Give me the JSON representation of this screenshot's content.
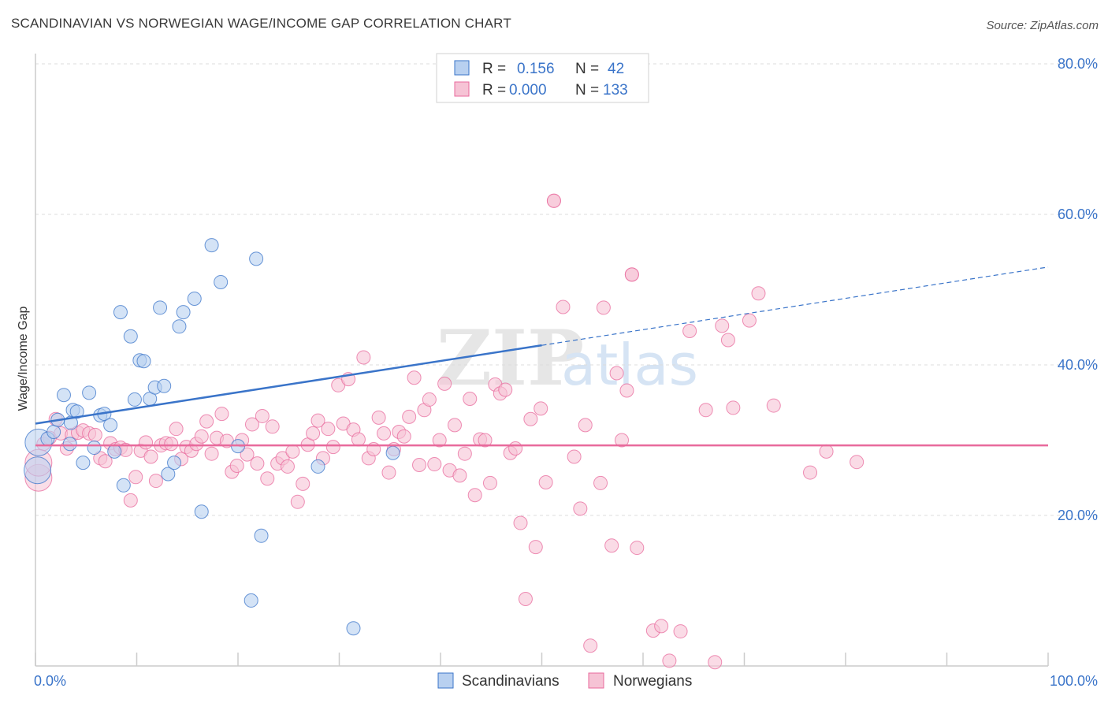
{
  "title": "SCANDINAVIAN VS NORWEGIAN WAGE/INCOME GAP CORRELATION CHART",
  "source": "Source: ZipAtlas.com",
  "watermark": {
    "zip": "ZIP",
    "atlas": "atlas"
  },
  "colors": {
    "blue": "#3a74c9",
    "blue_fill": "#b8d0f0",
    "pink": "#e86a9c",
    "pink_fill": "#f6c3d5",
    "grid": "#dcdcdc"
  },
  "legend": {
    "rows": [
      {
        "r_label": "R =",
        "r_value": "0.156",
        "n_label": "N =",
        "n_value": "42"
      },
      {
        "r_label": "R =",
        "r_value": "0.000",
        "n_label": "N =",
        "n_value": "133"
      }
    ]
  },
  "bottom_legend": [
    "Scandinavians",
    "Norwegians"
  ],
  "chart_data": {
    "type": "scatter",
    "title": "SCANDINAVIAN VS NORWEGIAN WAGE/INCOME GAP CORRELATION CHART",
    "xlabel": "",
    "ylabel": "Wage/Income Gap",
    "xlim": [
      0,
      100
    ],
    "ylim": [
      0,
      80
    ],
    "x_tick_labels": [
      "0.0%",
      "100.0%"
    ],
    "y_ticks": [
      20,
      40,
      60,
      80
    ],
    "y_tick_labels": [
      "20.0%",
      "40.0%",
      "60.0%",
      "80.0%"
    ],
    "series": [
      {
        "name": "Scandinavians",
        "color": "#3a74c9",
        "trend": {
          "x0": 0,
          "y0": 32.2,
          "x1": 50,
          "y1": 42.6,
          "dash_x1": 100,
          "dash_y1": 53.0
        },
        "points": [
          [
            0.3,
            29.7
          ],
          [
            1.2,
            30.2
          ],
          [
            1.8,
            31.1
          ],
          [
            2.2,
            32.7
          ],
          [
            2.8,
            36.0
          ],
          [
            3.4,
            29.5
          ],
          [
            3.5,
            32.3
          ],
          [
            3.7,
            34.0
          ],
          [
            4.1,
            33.8
          ],
          [
            4.7,
            27.0
          ],
          [
            5.3,
            36.3
          ],
          [
            5.8,
            29.0
          ],
          [
            6.4,
            33.3
          ],
          [
            6.8,
            33.5
          ],
          [
            7.4,
            32.0
          ],
          [
            7.8,
            28.5
          ],
          [
            8.4,
            47.0
          ],
          [
            8.7,
            24.0
          ],
          [
            9.4,
            43.8
          ],
          [
            9.8,
            35.4
          ],
          [
            10.3,
            40.6
          ],
          [
            10.7,
            40.5
          ],
          [
            11.3,
            35.5
          ],
          [
            11.8,
            37.0
          ],
          [
            12.3,
            47.6
          ],
          [
            12.7,
            37.2
          ],
          [
            13.1,
            25.5
          ],
          [
            13.7,
            27.0
          ],
          [
            14.2,
            45.1
          ],
          [
            14.6,
            47.0
          ],
          [
            15.7,
            48.8
          ],
          [
            16.4,
            20.5
          ],
          [
            17.4,
            55.9
          ],
          [
            18.3,
            51.0
          ],
          [
            20.0,
            29.2
          ],
          [
            21.3,
            8.7
          ],
          [
            21.8,
            54.1
          ],
          [
            22.3,
            17.3
          ],
          [
            27.9,
            26.5
          ],
          [
            31.4,
            5.0
          ],
          [
            35.3,
            28.3
          ],
          [
            0.2,
            26.0
          ]
        ]
      },
      {
        "name": "Norwegians",
        "color": "#e86a9c",
        "trend": {
          "x0": 0,
          "y0": 29.3,
          "x1": 100,
          "y1": 29.3
        },
        "points": [
          [
            0.3,
            25.0
          ],
          [
            0.8,
            29.5
          ],
          [
            1.4,
            30.3
          ],
          [
            2.0,
            32.8
          ],
          [
            2.5,
            30.9
          ],
          [
            3.1,
            28.9
          ],
          [
            3.6,
            30.7
          ],
          [
            4.2,
            31.0
          ],
          [
            4.7,
            31.3
          ],
          [
            5.3,
            30.9
          ],
          [
            5.9,
            30.7
          ],
          [
            6.4,
            27.6
          ],
          [
            6.9,
            27.2
          ],
          [
            7.4,
            29.6
          ],
          [
            7.9,
            28.8
          ],
          [
            8.4,
            29.0
          ],
          [
            8.9,
            28.7
          ],
          [
            9.4,
            22.0
          ],
          [
            9.9,
            25.1
          ],
          [
            10.4,
            28.6
          ],
          [
            10.9,
            29.7
          ],
          [
            11.4,
            27.8
          ],
          [
            11.9,
            24.6
          ],
          [
            12.4,
            29.3
          ],
          [
            12.9,
            29.6
          ],
          [
            13.4,
            29.5
          ],
          [
            13.9,
            31.5
          ],
          [
            14.4,
            27.5
          ],
          [
            14.9,
            29.1
          ],
          [
            15.4,
            28.6
          ],
          [
            15.9,
            29.5
          ],
          [
            16.4,
            30.5
          ],
          [
            16.9,
            32.5
          ],
          [
            17.4,
            28.2
          ],
          [
            17.9,
            30.3
          ],
          [
            18.4,
            33.5
          ],
          [
            18.9,
            29.9
          ],
          [
            19.4,
            25.8
          ],
          [
            19.9,
            26.6
          ],
          [
            20.4,
            30.0
          ],
          [
            20.9,
            28.1
          ],
          [
            21.4,
            32.1
          ],
          [
            21.9,
            26.9
          ],
          [
            22.4,
            33.2
          ],
          [
            22.9,
            24.9
          ],
          [
            23.4,
            31.8
          ],
          [
            23.9,
            26.9
          ],
          [
            24.4,
            27.6
          ],
          [
            24.9,
            26.5
          ],
          [
            25.4,
            28.5
          ],
          [
            25.9,
            21.8
          ],
          [
            26.4,
            24.2
          ],
          [
            26.9,
            29.4
          ],
          [
            27.4,
            30.9
          ],
          [
            27.9,
            32.6
          ],
          [
            28.4,
            27.6
          ],
          [
            28.9,
            31.5
          ],
          [
            29.4,
            29.1
          ],
          [
            29.9,
            37.3
          ],
          [
            30.4,
            32.2
          ],
          [
            30.9,
            38.1
          ],
          [
            31.4,
            31.4
          ],
          [
            31.9,
            30.1
          ],
          [
            32.4,
            41.0
          ],
          [
            32.9,
            27.6
          ],
          [
            33.4,
            28.8
          ],
          [
            33.9,
            33.0
          ],
          [
            34.4,
            30.9
          ],
          [
            34.9,
            25.7
          ],
          [
            35.4,
            28.8
          ],
          [
            35.9,
            31.1
          ],
          [
            36.4,
            30.5
          ],
          [
            36.9,
            33.1
          ],
          [
            37.4,
            38.3
          ],
          [
            37.9,
            26.7
          ],
          [
            38.4,
            34.0
          ],
          [
            38.9,
            35.4
          ],
          [
            39.4,
            26.8
          ],
          [
            39.9,
            30.0
          ],
          [
            40.4,
            37.5
          ],
          [
            40.9,
            26.0
          ],
          [
            41.4,
            32.0
          ],
          [
            41.9,
            25.3
          ],
          [
            42.4,
            28.2
          ],
          [
            42.9,
            35.5
          ],
          [
            43.4,
            22.7
          ],
          [
            43.9,
            30.1
          ],
          [
            44.4,
            30.0
          ],
          [
            44.9,
            24.3
          ],
          [
            45.4,
            37.4
          ],
          [
            45.9,
            36.2
          ],
          [
            46.4,
            36.7
          ],
          [
            46.9,
            28.3
          ],
          [
            47.4,
            28.9
          ],
          [
            47.9,
            19.0
          ],
          [
            48.4,
            8.9
          ],
          [
            48.9,
            32.8
          ],
          [
            49.4,
            15.8
          ],
          [
            49.9,
            34.2
          ],
          [
            50.4,
            24.4
          ],
          [
            51.2,
            61.8
          ],
          [
            52.1,
            47.7
          ],
          [
            53.2,
            27.8
          ],
          [
            53.8,
            20.9
          ],
          [
            54.3,
            32.0
          ],
          [
            55.8,
            24.3
          ],
          [
            56.1,
            47.6
          ],
          [
            56.9,
            16.0
          ],
          [
            57.4,
            38.9
          ],
          [
            57.9,
            30.0
          ],
          [
            58.4,
            36.6
          ],
          [
            58.9,
            52.0
          ],
          [
            59.4,
            15.7
          ],
          [
            61.0,
            4.7
          ],
          [
            61.8,
            5.3
          ],
          [
            62.6,
            0.7
          ],
          [
            63.7,
            4.6
          ],
          [
            64.6,
            44.5
          ],
          [
            66.2,
            34.0
          ],
          [
            67.1,
            0.5
          ],
          [
            67.8,
            45.2
          ],
          [
            68.4,
            43.3
          ],
          [
            68.9,
            34.3
          ],
          [
            70.5,
            45.9
          ],
          [
            71.4,
            49.5
          ],
          [
            72.9,
            34.6
          ],
          [
            76.5,
            25.7
          ],
          [
            78.1,
            28.5
          ],
          [
            81.1,
            27.1
          ],
          [
            51.2,
            61.8
          ],
          [
            54.8,
            2.7
          ],
          [
            58.9,
            52.0
          ],
          [
            0.3,
            27.0
          ]
        ]
      }
    ]
  }
}
